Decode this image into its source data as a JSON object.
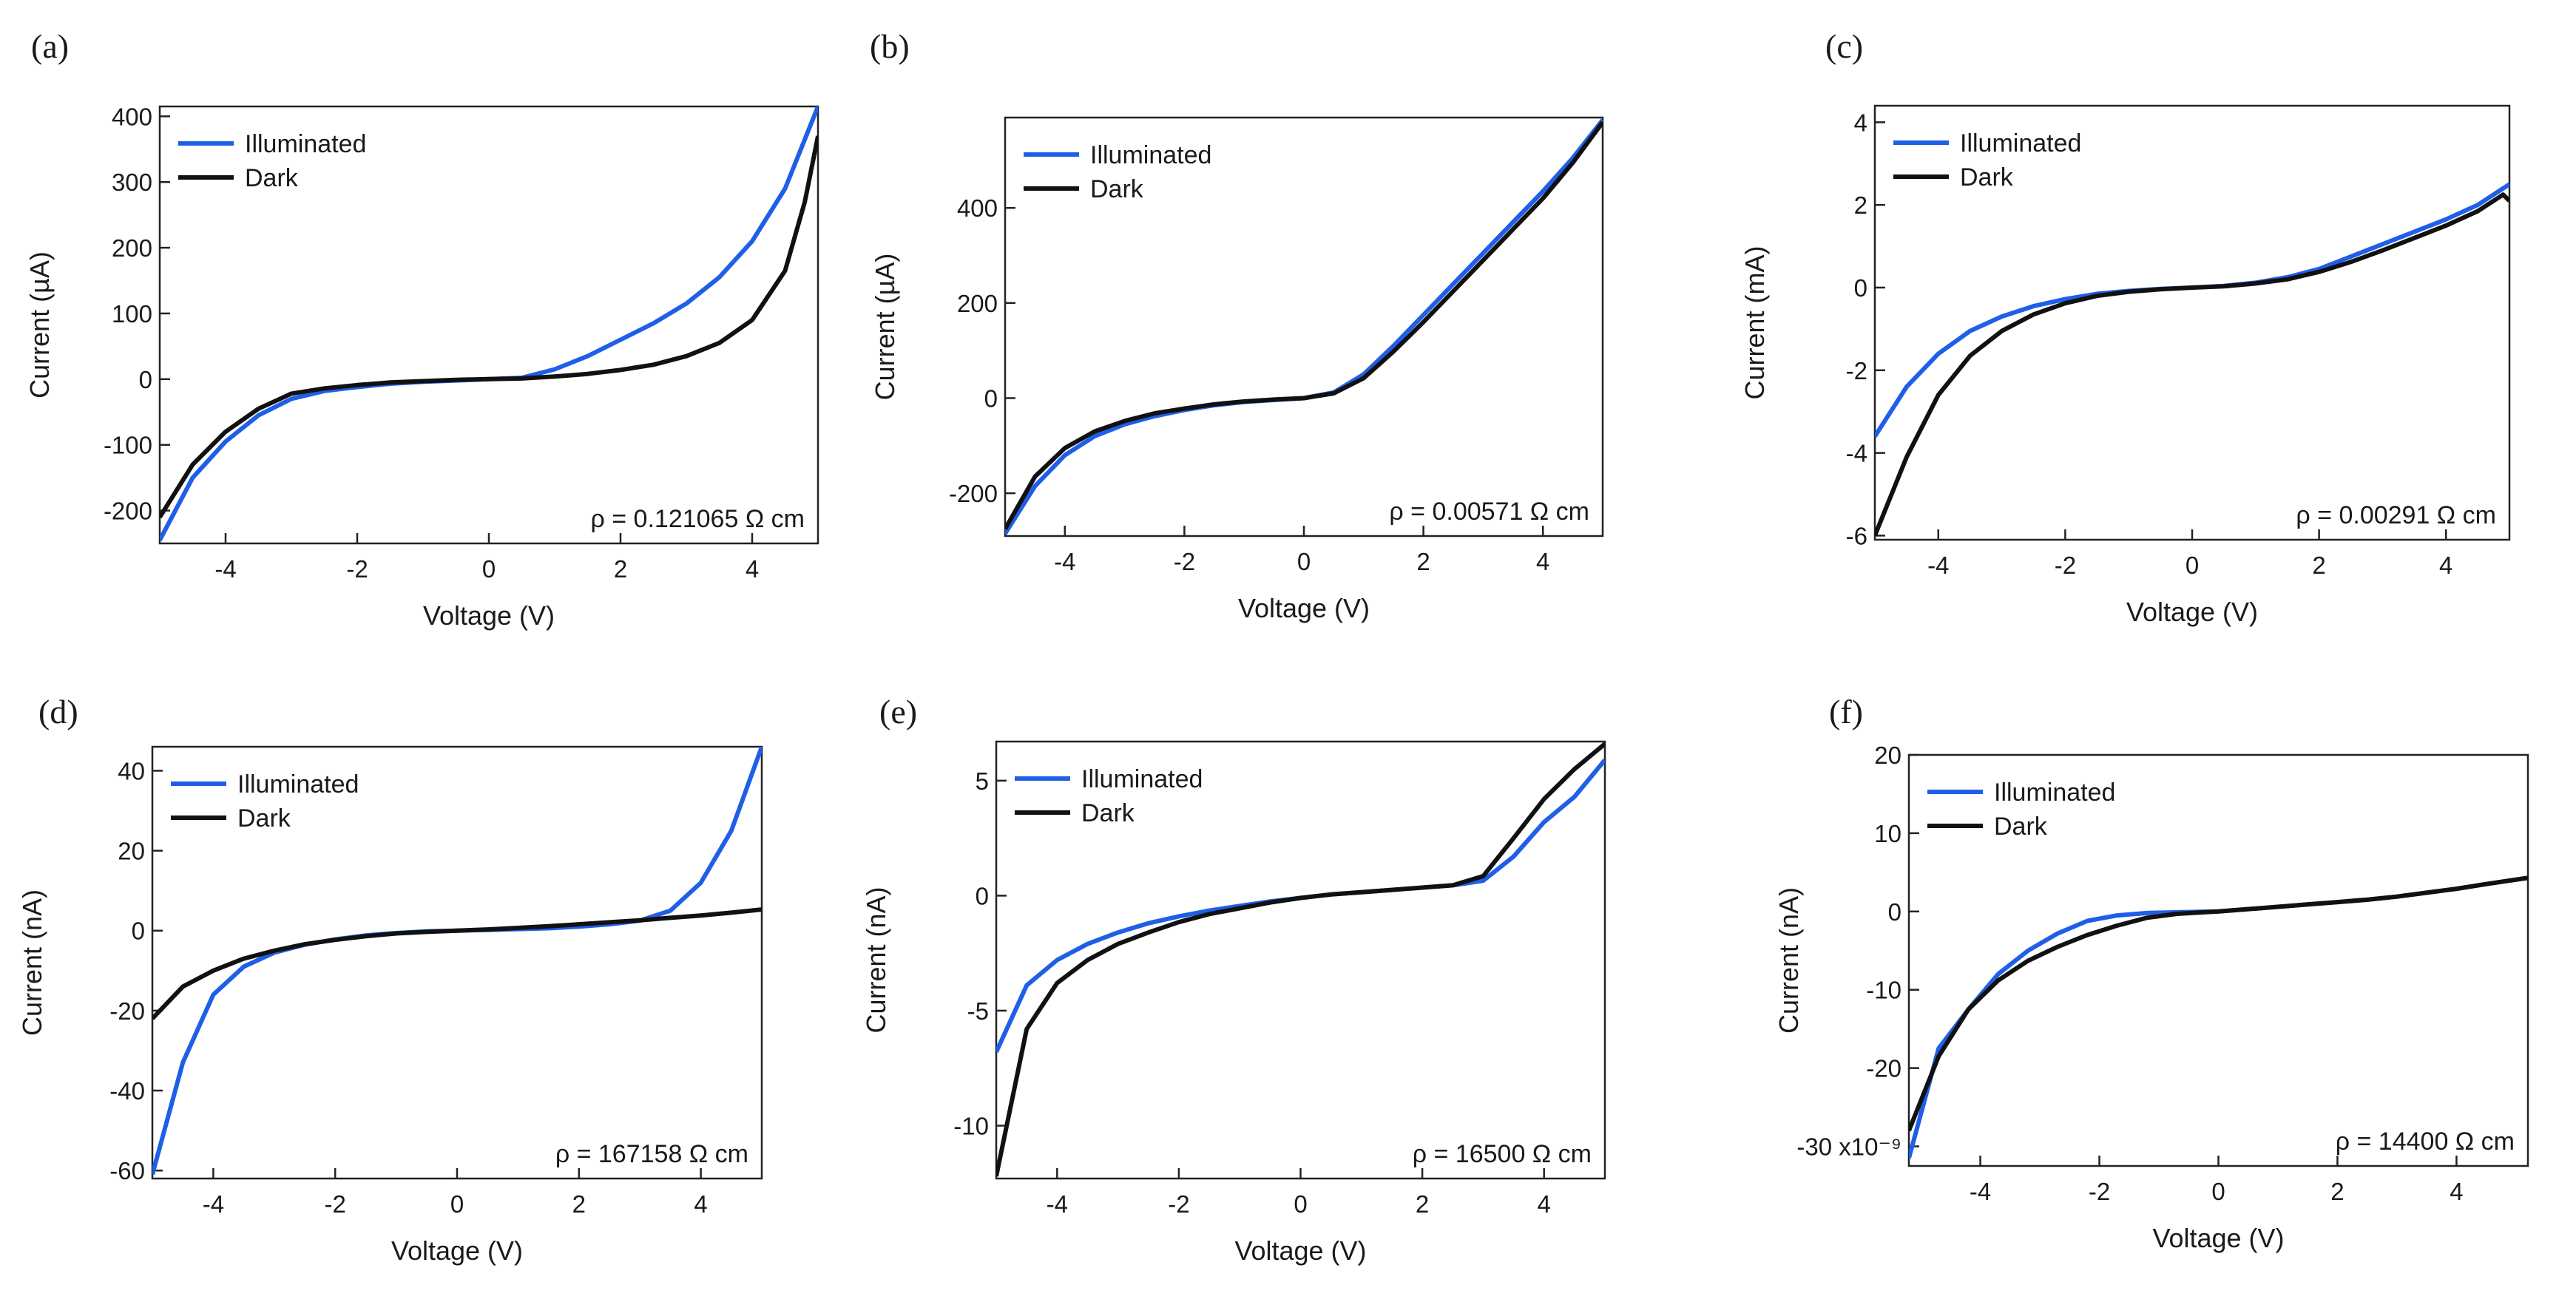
{
  "colors": {
    "illuminated": "#1f5fe8",
    "dark": "#111111",
    "axis": "#222222",
    "text": "#1a1a1a"
  },
  "chart_data": [
    {
      "panel": "(a)",
      "type": "line",
      "xlabel": "Voltage (V)",
      "ylabel": "Current (µA)",
      "xlim": [
        -5,
        5
      ],
      "ylim": [
        -250,
        415
      ],
      "xticks": [
        -4,
        -2,
        0,
        2,
        4
      ],
      "yticks": [
        -200,
        -100,
        0,
        100,
        200,
        300,
        400
      ],
      "legend": [
        "Illuminated",
        "Dark"
      ],
      "annotation": "ρ = 0.121065 Ω cm",
      "series": [
        {
          "name": "Illuminated",
          "color": "#1f5fe8",
          "x": [
            -5,
            -4.5,
            -4,
            -3.5,
            -3,
            -2.5,
            -2,
            -1.5,
            -1,
            -0.5,
            0,
            0.5,
            1,
            1.5,
            2,
            2.5,
            3,
            3.5,
            4,
            4.5,
            5
          ],
          "y": [
            -245,
            -150,
            -95,
            -55,
            -30,
            -18,
            -12,
            -7,
            -4,
            -2,
            0,
            2,
            15,
            35,
            60,
            85,
            115,
            155,
            210,
            290,
            415
          ]
        },
        {
          "name": "Dark",
          "color": "#111111",
          "x": [
            -5,
            -4.5,
            -4,
            -3.5,
            -3,
            -2.5,
            -2,
            -1.5,
            -1,
            -0.5,
            0,
            0.5,
            1,
            1.5,
            2,
            2.5,
            3,
            3.5,
            4,
            4.5,
            4.8,
            5
          ],
          "y": [
            -210,
            -130,
            -80,
            -45,
            -22,
            -14,
            -9,
            -5,
            -3,
            -1,
            0,
            1,
            4,
            8,
            14,
            22,
            35,
            55,
            90,
            165,
            270,
            370
          ]
        }
      ]
    },
    {
      "panel": "(b)",
      "type": "line",
      "xlabel": "Voltage (V)",
      "ylabel": "Current (µA)",
      "xlim": [
        -5,
        5
      ],
      "ylim": [
        -290,
        590
      ],
      "xticks": [
        -4,
        -2,
        0,
        2,
        4
      ],
      "yticks": [
        -200,
        0,
        200,
        400
      ],
      "legend": [
        "Illuminated",
        "Dark"
      ],
      "annotation": "ρ = 0.00571 Ω cm",
      "series": [
        {
          "name": "Illuminated",
          "color": "#1f5fe8",
          "x": [
            -5,
            -4.5,
            -4,
            -3.5,
            -3,
            -2.5,
            -2,
            -1.5,
            -1,
            -0.5,
            0,
            0.5,
            1,
            1.5,
            2,
            2.5,
            3,
            3.5,
            4,
            4.5,
            5
          ],
          "y": [
            -285,
            -185,
            -120,
            -80,
            -55,
            -38,
            -25,
            -15,
            -8,
            -4,
            0,
            12,
            50,
            110,
            175,
            240,
            305,
            370,
            435,
            505,
            585
          ]
        },
        {
          "name": "Dark",
          "color": "#111111",
          "x": [
            -5,
            -4.5,
            -4,
            -3.5,
            -3,
            -2.5,
            -2,
            -1.5,
            -1,
            -0.5,
            0,
            0.5,
            1,
            1.5,
            2,
            2.5,
            3,
            3.5,
            4,
            4.5,
            5
          ],
          "y": [
            -275,
            -165,
            -105,
            -70,
            -48,
            -32,
            -22,
            -13,
            -7,
            -3,
            0,
            10,
            42,
            98,
            160,
            225,
            290,
            355,
            420,
            495,
            580
          ]
        }
      ]
    },
    {
      "panel": "(c)",
      "type": "line",
      "xlabel": "Voltage (V)",
      "ylabel": "Current (mA)",
      "xlim": [
        -5,
        5
      ],
      "ylim": [
        -6.1,
        4.4
      ],
      "xticks": [
        -4,
        -2,
        0,
        2,
        4
      ],
      "yticks": [
        -6,
        -4,
        -2,
        0,
        2,
        4
      ],
      "legend": [
        "Illuminated",
        "Dark"
      ],
      "annotation": "ρ = 0.00291 Ω cm",
      "series": [
        {
          "name": "Illuminated",
          "color": "#1f5fe8",
          "x": [
            -5,
            -4.5,
            -4,
            -3.5,
            -3,
            -2.5,
            -2,
            -1.5,
            -1,
            -0.5,
            0,
            0.5,
            1,
            1.5,
            2,
            2.5,
            3,
            3.5,
            4,
            4.5,
            5
          ],
          "y": [
            -3.6,
            -2.4,
            -1.6,
            -1.05,
            -0.7,
            -0.45,
            -0.28,
            -0.15,
            -0.08,
            -0.03,
            0,
            0.04,
            0.12,
            0.25,
            0.45,
            0.75,
            1.05,
            1.35,
            1.65,
            2.0,
            2.5
          ]
        },
        {
          "name": "Dark",
          "color": "#111111",
          "x": [
            -5,
            -4.5,
            -4,
            -3.5,
            -3,
            -2.5,
            -2,
            -1.5,
            -1,
            -0.5,
            0,
            0.5,
            1,
            1.5,
            2,
            2.5,
            3,
            3.5,
            4,
            4.5,
            4.9,
            5
          ],
          "y": [
            -6.0,
            -4.1,
            -2.6,
            -1.65,
            -1.05,
            -0.65,
            -0.38,
            -0.2,
            -0.1,
            -0.04,
            0,
            0.03,
            0.1,
            0.2,
            0.38,
            0.62,
            0.9,
            1.2,
            1.5,
            1.85,
            2.25,
            2.1
          ]
        }
      ]
    },
    {
      "panel": "(d)",
      "type": "line",
      "xlabel": "Voltage (V)",
      "ylabel": "Current (nA)",
      "xlim": [
        -5,
        5
      ],
      "ylim": [
        -62,
        46
      ],
      "xticks": [
        -4,
        -2,
        0,
        2,
        4
      ],
      "yticks": [
        -60,
        -40,
        -20,
        0,
        20,
        40
      ],
      "legend": [
        "Illuminated",
        "Dark"
      ],
      "annotation": "ρ = 167158 Ω cm",
      "series": [
        {
          "name": "Illuminated",
          "color": "#1f5fe8",
          "x": [
            -5,
            -4.5,
            -4,
            -3.5,
            -3,
            -2.5,
            -2,
            -1.5,
            -1,
            -0.5,
            0,
            0.5,
            1,
            1.5,
            2,
            2.5,
            3,
            3.5,
            4,
            4.5,
            5
          ],
          "y": [
            -61,
            -33,
            -16,
            -9,
            -5.5,
            -3.5,
            -2.2,
            -1.2,
            -0.6,
            -0.2,
            0,
            0.2,
            0.4,
            0.6,
            1.0,
            1.6,
            2.5,
            5,
            12,
            25,
            46
          ]
        },
        {
          "name": "Dark",
          "color": "#111111",
          "x": [
            -5,
            -4.5,
            -4,
            -3.5,
            -3,
            -2.5,
            -2,
            -1.5,
            -1,
            -0.5,
            0,
            0.5,
            1,
            1.5,
            2,
            2.5,
            3,
            3.5,
            4,
            4.5,
            5
          ],
          "y": [
            -22,
            -14,
            -10,
            -7,
            -5,
            -3.4,
            -2.3,
            -1.4,
            -0.7,
            -0.3,
            0,
            0.3,
            0.7,
            1.1,
            1.6,
            2.1,
            2.6,
            3.2,
            3.8,
            4.5,
            5.3
          ]
        }
      ]
    },
    {
      "panel": "(e)",
      "type": "line",
      "xlabel": "Voltage (V)",
      "ylabel": "Current (nA)",
      "xlim": [
        -5,
        5
      ],
      "ylim": [
        -12.3,
        6.7
      ],
      "xticks": [
        -4,
        -2,
        0,
        2,
        4
      ],
      "yticks": [
        -10,
        -5,
        0,
        5
      ],
      "legend": [
        "Illuminated",
        "Dark"
      ],
      "annotation": "ρ = 16500 Ω cm",
      "series": [
        {
          "name": "Illuminated",
          "color": "#1f5fe8",
          "x": [
            -5,
            -4.5,
            -4,
            -3.5,
            -3,
            -2.5,
            -2,
            -1.5,
            -1,
            -0.5,
            0,
            0.5,
            1,
            1.5,
            2,
            2.5,
            3,
            3.5,
            4,
            4.5,
            5
          ],
          "y": [
            -6.8,
            -3.9,
            -2.8,
            -2.1,
            -1.6,
            -1.2,
            -0.9,
            -0.65,
            -0.45,
            -0.25,
            -0.1,
            0.05,
            0.15,
            0.25,
            0.35,
            0.45,
            0.65,
            1.7,
            3.2,
            4.3,
            5.9
          ]
        },
        {
          "name": "Dark",
          "color": "#111111",
          "x": [
            -5,
            -4.5,
            -4,
            -3.5,
            -3,
            -2.5,
            -2,
            -1.5,
            -1,
            -0.5,
            0,
            0.5,
            1,
            1.5,
            2,
            2.5,
            3,
            3.5,
            4,
            4.5,
            5
          ],
          "y": [
            -12.2,
            -5.8,
            -3.8,
            -2.8,
            -2.1,
            -1.6,
            -1.15,
            -0.8,
            -0.55,
            -0.3,
            -0.1,
            0.05,
            0.15,
            0.25,
            0.35,
            0.45,
            0.85,
            2.5,
            4.2,
            5.5,
            6.6
          ]
        }
      ]
    },
    {
      "panel": "(f)",
      "type": "line",
      "xlabel": "Voltage (V)",
      "ylabel": "Current (nA)",
      "xlim": [
        -5.2,
        5.2
      ],
      "ylim": [
        -32.5,
        20
      ],
      "xticks": [
        -4,
        -2,
        0,
        2,
        4
      ],
      "yticks": [
        -30,
        -20,
        -10,
        0,
        10,
        20
      ],
      "ytick_labels": [
        "-30 x10⁻⁹",
        "-20",
        "-10",
        "0",
        "10",
        "20"
      ],
      "legend": [
        "Illuminated",
        "Dark"
      ],
      "annotation": "ρ = 14400 Ω cm",
      "series": [
        {
          "name": "Illuminated",
          "color": "#1f5fe8",
          "x": [
            -5.2,
            -4.7,
            -4.2,
            -3.7,
            -3.2,
            -2.7,
            -2.2,
            -1.7,
            -1.2,
            -0.7,
            0,
            0.5,
            1,
            1.5,
            2,
            2.5,
            3,
            3.5,
            4,
            4.5,
            5.2
          ],
          "y": [
            -31.5,
            -17.5,
            -12.5,
            -8.0,
            -5.0,
            -2.8,
            -1.2,
            -0.5,
            -0.2,
            -0.1,
            0,
            0.3,
            0.6,
            0.9,
            1.2,
            1.5,
            1.9,
            2.4,
            2.9,
            3.5,
            4.3
          ]
        },
        {
          "name": "Dark",
          "color": "#111111",
          "x": [
            -5.2,
            -4.7,
            -4.2,
            -3.7,
            -3.2,
            -2.7,
            -2.2,
            -1.7,
            -1.2,
            -0.7,
            0,
            0.5,
            1,
            1.5,
            2,
            2.5,
            3,
            3.5,
            4,
            4.5,
            5.2
          ],
          "y": [
            -28,
            -18.5,
            -12.5,
            -8.8,
            -6.3,
            -4.5,
            -3.0,
            -1.8,
            -0.8,
            -0.3,
            0,
            0.3,
            0.6,
            0.9,
            1.2,
            1.5,
            1.9,
            2.4,
            2.9,
            3.5,
            4.3
          ]
        }
      ]
    }
  ]
}
